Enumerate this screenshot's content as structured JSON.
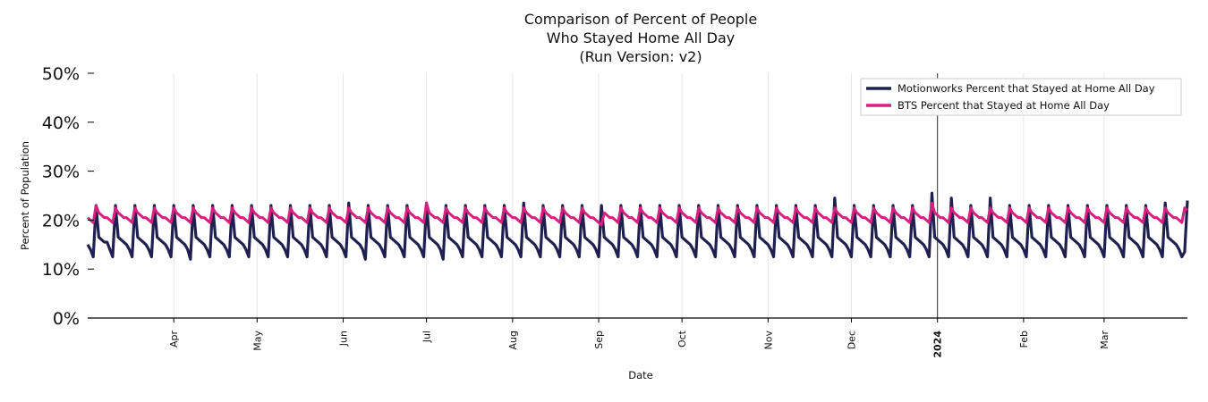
{
  "chart_data": {
    "type": "line",
    "title": [
      "Comparison of Percent of People",
      "Who Stayed Home All Day",
      "(Run Version: v2)"
    ],
    "xlabel": "Date",
    "ylabel": "Percent of Population",
    "x_range": [
      "2023-03-01",
      "2024-03-31"
    ],
    "ylim": [
      0,
      50
    ],
    "y_ticks": [
      0,
      10,
      20,
      30,
      40,
      50
    ],
    "y_tick_labels": [
      "0%",
      "10%",
      "20%",
      "30%",
      "40%",
      "50%"
    ],
    "x_ticks": [
      {
        "date": "2023-04-01",
        "label": "Apr",
        "bold": false
      },
      {
        "date": "2023-05-01",
        "label": "May",
        "bold": false
      },
      {
        "date": "2023-06-01",
        "label": "Jun",
        "bold": false
      },
      {
        "date": "2023-07-01",
        "label": "Jul",
        "bold": false
      },
      {
        "date": "2023-08-01",
        "label": "Aug",
        "bold": false
      },
      {
        "date": "2023-09-01",
        "label": "Sep",
        "bold": false
      },
      {
        "date": "2023-10-01",
        "label": "Oct",
        "bold": false
      },
      {
        "date": "2023-11-01",
        "label": "Nov",
        "bold": false
      },
      {
        "date": "2023-12-01",
        "label": "Dec",
        "bold": false
      },
      {
        "date": "2024-01-01",
        "label": "2024",
        "bold": true
      },
      {
        "date": "2024-02-01",
        "label": "Feb",
        "bold": false
      },
      {
        "date": "2024-03-01",
        "label": "Mar",
        "bold": false
      }
    ],
    "vertical_marker": "2024-01-01",
    "grid": "vertical",
    "legend_position": "top-right",
    "series": [
      {
        "name": "Motionworks Percent that Stayed at Home All Day",
        "color": "#1f2050",
        "weekly_pattern": [
          23.0,
          16.5,
          16.0,
          15.5,
          15.0,
          14.0,
          12.5
        ],
        "start_date": "2023-03-04",
        "points": [
          [
            "2023-03-04",
            23.0
          ],
          [
            "2023-03-05",
            16.5
          ],
          [
            "2023-03-08",
            15.5
          ],
          [
            "2023-03-10",
            12.5
          ],
          [
            "2023-04-01",
            23.0
          ],
          [
            "2023-04-07",
            12.0
          ],
          [
            "2023-06-03",
            23.5
          ],
          [
            "2023-06-09",
            12.0
          ],
          [
            "2023-07-01",
            23.5
          ],
          [
            "2023-07-07",
            12.0
          ],
          [
            "2023-08-05",
            23.5
          ],
          [
            "2023-08-11",
            12.5
          ],
          [
            "2023-11-25",
            24.5
          ],
          [
            "2023-12-01",
            12.5
          ],
          [
            "2023-12-30",
            25.5
          ],
          [
            "2024-01-06",
            24.5
          ],
          [
            "2024-01-20",
            24.5
          ],
          [
            "2024-03-23",
            23.5
          ],
          [
            "2024-03-30",
            13.5
          ],
          [
            "2024-03-31",
            24.0
          ]
        ]
      },
      {
        "name": "BTS Percent that Stayed at Home All Day",
        "color": "#d4207e",
        "weekly_pattern": [
          22.5,
          21.5,
          21.0,
          20.5,
          20.5,
          20.0,
          19.5
        ],
        "start_date": "2023-03-04",
        "points": [
          [
            "2023-03-04",
            23.0
          ],
          [
            "2023-03-10",
            19.5
          ],
          [
            "2023-07-01",
            23.5
          ],
          [
            "2023-09-02",
            19.0
          ],
          [
            "2023-12-30",
            23.5
          ],
          [
            "2024-01-06",
            22.5
          ],
          [
            "2024-03-31",
            22.0
          ]
        ]
      }
    ]
  }
}
